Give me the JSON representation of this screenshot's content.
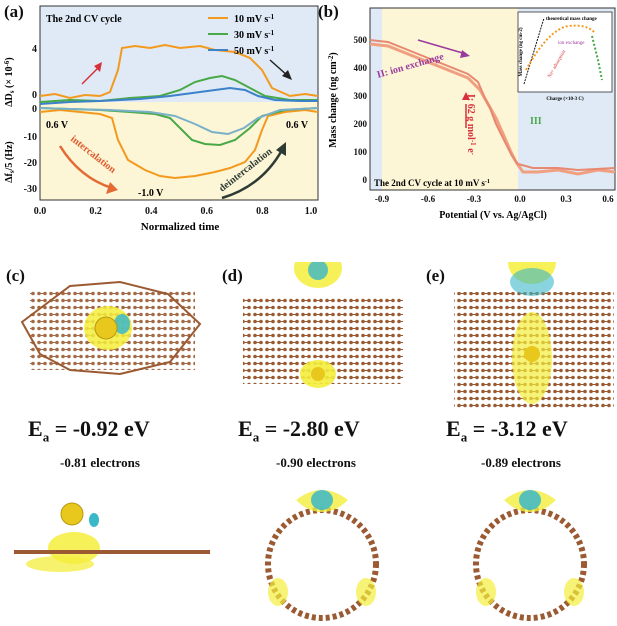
{
  "panel_labels": {
    "a": "(a)",
    "b": "(b)",
    "c": "(c)",
    "d": "(d)",
    "e": "(e)"
  },
  "panel_a": {
    "title": "The 2nd CV cycle",
    "ylabel_top": "ΔD",
    "ylabel_top_sub": "s",
    "ylabel_top_tail": " (× 10",
    "ylabel_top_sup": "-6",
    "ylabel_top_end": ")",
    "ylabel_bottom": "Δf",
    "ylabel_bottom_sub": "s",
    "ylabel_bottom_tail": "/5 (Hz)",
    "xlabel": "Normalized time",
    "x_ticks": [
      "0.0",
      "0.2",
      "0.4",
      "0.6",
      "0.8",
      "1.0"
    ],
    "y_ticks_f": [
      "0",
      "-10",
      "-20",
      "-30"
    ],
    "y_ticks_d": [
      "0",
      "4"
    ],
    "legend": [
      {
        "label": "10 mV s",
        "sup": "-1",
        "color": "#f39a1e"
      },
      {
        "label": "30 mV s",
        "sup": "-1",
        "color": "#48a946"
      },
      {
        "label": "50 mV s",
        "sup": "-1",
        "color": "#3d82c8"
      }
    ],
    "ann_06_left": "0.6 V",
    "ann_06_right": "0.6 V",
    "ann_m10": "-1.0 V",
    "ann_intercalation": "intercalation",
    "ann_deintercalation": "deintercalation"
  },
  "panel_b": {
    "ylabel": "Mass change (ng cm",
    "ylabel_sup": "-2",
    "ylabel_end": ")",
    "xlabel": "Potential (V vs. Ag/AgCl)",
    "x_ticks": [
      "-0.9",
      "-0.6",
      "-0.3",
      "0.0",
      "0.3",
      "0.6"
    ],
    "y_ticks": [
      "500",
      "400",
      "300",
      "200",
      "100",
      "0"
    ],
    "ann_ion_exchange": "II: ion exchange",
    "ann_I": "I: 62 g mol",
    "ann_I_sup": "-1",
    "ann_I_end": " e",
    "ann_I_sup2": "-",
    "ann_III": "III",
    "footer": "The 2nd CV cycle at 10 mV s",
    "footer_sup": "-1",
    "inset": {
      "ylabel": "Mass change (ng cm-2)",
      "xlabel": "Charge (×10-3 C)",
      "theory": "theoretical mass change",
      "ion": "ion exchange",
      "na": "Na+ adsorption",
      "x_ticks": [
        "0",
        "1",
        "2",
        "3",
        "4",
        "5",
        "6"
      ]
    }
  },
  "panel_c": {
    "ea_label": "E",
    "ea_sub": "a",
    "ea_value": " = -0.92 eV",
    "electrons": "-0.81 electrons"
  },
  "panel_d": {
    "ea_label": "E",
    "ea_sub": "a",
    "ea_value": " = -2.80 eV",
    "electrons": "-0.90 electrons"
  },
  "panel_e": {
    "ea_label": "E",
    "ea_sub": "a",
    "ea_value": " = -3.12 eV",
    "electrons": "-0.89 electrons"
  },
  "colors": {
    "carbon": "#9b5a32",
    "sodium": "#e8c81c",
    "isoYellow": "#f4ee3c",
    "isoCyan": "#3bb8c8",
    "bgYellow": "#fcf5d6",
    "bgBlue": "#dfeaf6"
  }
}
